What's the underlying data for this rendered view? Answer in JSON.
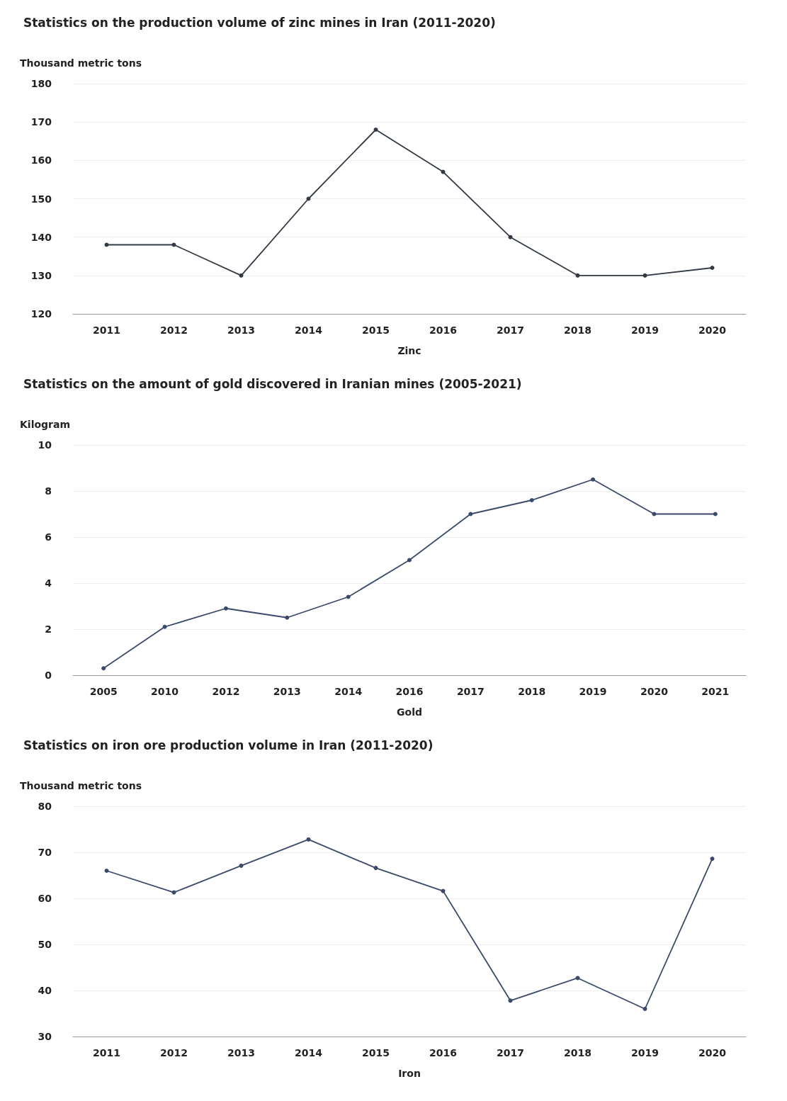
{
  "chart_data": [
    {
      "type": "line",
      "title": "Statistics on the production volume of zinc mines in Iran (2011-2020)",
      "ylabel": "Thousand metric tons",
      "xlabel": "Zinc",
      "categories": [
        "2011",
        "2012",
        "2013",
        "2014",
        "2015",
        "2016",
        "2017",
        "2018",
        "2019",
        "2020"
      ],
      "values": [
        138,
        138,
        130,
        150,
        168,
        157,
        140,
        130,
        130,
        132
      ],
      "color": "#333a44",
      "ylim": [
        120,
        180
      ],
      "yticks": [
        120,
        130,
        140,
        150,
        160,
        170,
        180
      ],
      "grid": "y",
      "marker": "circle"
    },
    {
      "type": "line",
      "title": "Statistics on the amount of gold discovered in Iranian mines (2005-2021)",
      "ylabel": "Kilogram",
      "xlabel": "Gold",
      "categories": [
        "2005",
        "2010",
        "2012",
        "2013",
        "2014",
        "2016",
        "2017",
        "2018",
        "2019",
        "2020",
        "2021"
      ],
      "values": [
        0.3,
        2.1,
        2.9,
        2.5,
        3.4,
        5,
        7,
        7.6,
        8.5,
        7,
        7
      ],
      "color": "#3b4a6b",
      "ylim": [
        0,
        10
      ],
      "yticks": [
        0,
        2,
        4,
        6,
        8,
        10
      ],
      "grid": "y",
      "marker": "circle"
    },
    {
      "type": "line",
      "title": "Statistics on iron ore production volume in Iran (2011-2020)",
      "ylabel": "Thousand metric tons",
      "xlabel": "Iron",
      "categories": [
        "2011",
        "2012",
        "2013",
        "2014",
        "2015",
        "2016",
        "2017",
        "2018",
        "2019",
        "2020"
      ],
      "values": [
        66,
        61.3,
        67.1,
        72.8,
        66.6,
        61.6,
        37.8,
        42.7,
        36,
        68.6
      ],
      "color": "#3b4a6b",
      "ylim": [
        30,
        80
      ],
      "yticks": [
        30,
        40,
        50,
        60,
        70,
        80
      ],
      "grid": "y",
      "marker": "circle"
    }
  ]
}
